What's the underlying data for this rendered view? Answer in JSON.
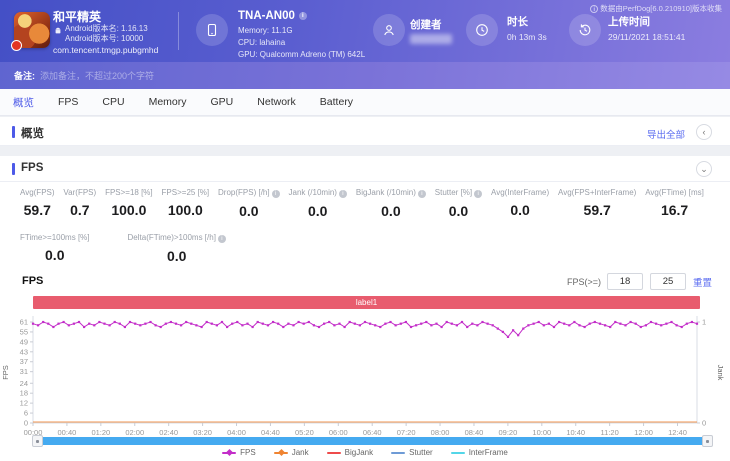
{
  "header": {
    "app": {
      "name": "和平精英",
      "android_version_name": "Android版本名: 1.16.13",
      "android_version_code": "Android版本号: 10000",
      "package": "com.tencent.tmgp.pubgmhd"
    },
    "device": {
      "model": "TNA-AN00",
      "memory": "Memory: 11.1G",
      "cpu": "CPU: lahaina",
      "gpu": "GPU: Qualcomm Adreno (TM) 642L"
    },
    "creator": {
      "label": "创建者",
      "value_hidden": true
    },
    "duration": {
      "label": "时长",
      "value": "0h 13m 3s"
    },
    "upload": {
      "label": "上传时间",
      "value": "29/11/2021 18:51:41"
    },
    "collect_note": "数据由PerfDog[6.0.210910]版本收集"
  },
  "note_bar": {
    "label": "备注:",
    "placeholder": "添加备注，不超过200个字符"
  },
  "tabs": [
    {
      "label": "概览",
      "name": "overview",
      "active": true
    },
    {
      "label": "FPS",
      "name": "fps",
      "active": false
    },
    {
      "label": "CPU",
      "name": "cpu",
      "active": false
    },
    {
      "label": "Memory",
      "name": "memory",
      "active": false
    },
    {
      "label": "GPU",
      "name": "gpu",
      "active": false
    },
    {
      "label": "Network",
      "name": "network",
      "active": false
    },
    {
      "label": "Battery",
      "name": "battery",
      "active": false
    }
  ],
  "overview": {
    "title": "概览",
    "export_all": "导出全部",
    "collapse_icon": "‹"
  },
  "fps_section": {
    "title": "FPS",
    "collapse_icon": "⌄",
    "stats_row1": [
      {
        "label": "Avg(FPS)",
        "value": "59.7",
        "info": false
      },
      {
        "label": "Var(FPS)",
        "value": "0.7",
        "info": false
      },
      {
        "label": "FPS>=18 [%]",
        "value": "100.0",
        "info": false
      },
      {
        "label": "FPS>=25 [%]",
        "value": "100.0",
        "info": false
      },
      {
        "label": "Drop(FPS) [/h]",
        "value": "0.0",
        "info": true
      },
      {
        "label": "Jank (/10min)",
        "value": "0.0",
        "info": true
      },
      {
        "label": "BigJank (/10min)",
        "value": "0.0",
        "info": true
      },
      {
        "label": "Stutter [%]",
        "value": "0.0",
        "info": true
      },
      {
        "label": "Avg(InterFrame)",
        "value": "0.0",
        "info": false
      },
      {
        "label": "Avg(FPS+InterFrame)",
        "value": "59.7",
        "info": false
      },
      {
        "label": "Avg(FTime) [ms]",
        "value": "16.7",
        "info": false
      }
    ],
    "stats_row2": [
      {
        "label": "FTime>=100ms [%]",
        "value": "0.0",
        "info": false
      },
      {
        "label": "Delta(FTime)>100ms [/h]",
        "value": "0.0",
        "info": true
      }
    ],
    "chart_label": "FPS",
    "threshold": {
      "label": "FPS(>=)",
      "low": "18",
      "high": "25",
      "reset": "重置"
    }
  },
  "chart_data": {
    "type": "line",
    "title": "",
    "ylabel_left": "FPS",
    "ylabel_right": "Jank",
    "y_ticks_left": [
      0,
      6,
      12,
      18,
      24,
      31,
      37,
      43,
      49,
      55,
      61
    ],
    "y_ticks_right": [
      0,
      1
    ],
    "ylim_left": [
      0,
      61
    ],
    "ylim_right": [
      0,
      1
    ],
    "duration_seconds": 783,
    "x_ticks": [
      "00:00",
      "00:40",
      "01:20",
      "02:00",
      "02:40",
      "03:20",
      "04:00",
      "04:40",
      "05:20",
      "06:00",
      "06:40",
      "07:20",
      "08:00",
      "08:40",
      "09:20",
      "10:00",
      "10:40",
      "11:20",
      "12:00",
      "12:40"
    ],
    "annotation_band": {
      "text": "label1",
      "color": "#e85c6e"
    },
    "grid": false,
    "legend_position": "bottom",
    "series": [
      {
        "name": "FPS",
        "color": "#c32ec9",
        "values": [
          60,
          59,
          61,
          60,
          58,
          60,
          61,
          59,
          60,
          61,
          58,
          60,
          59,
          61,
          60,
          59,
          61,
          60,
          58,
          61,
          60,
          59,
          60,
          61,
          59,
          58,
          60,
          61,
          60,
          59,
          61,
          60,
          59,
          58,
          61,
          60,
          59,
          61,
          58,
          60,
          61,
          59,
          60,
          58,
          61,
          60,
          59,
          61,
          60,
          58,
          60,
          59,
          61,
          60,
          61,
          59,
          58,
          60,
          61,
          59,
          60,
          58,
          61,
          60,
          59,
          61,
          60,
          59,
          58,
          60,
          61,
          59,
          60,
          61,
          58,
          59,
          60,
          61,
          59,
          60,
          58,
          61,
          60,
          59,
          61,
          58,
          60,
          59,
          61,
          60,
          59,
          57,
          55,
          52,
          56,
          53,
          57,
          59,
          60,
          61,
          59,
          60,
          58,
          61,
          60,
          59,
          61,
          59,
          58,
          60,
          61,
          60,
          59,
          58,
          61,
          60,
          59,
          61,
          60,
          58,
          59,
          61,
          60,
          59,
          60,
          61,
          59,
          58,
          60,
          61,
          60
        ]
      },
      {
        "name": "Jank",
        "color": "#ef8432",
        "constant": 0
      },
      {
        "name": "BigJank",
        "color": "#ee4b4b",
        "constant": null
      },
      {
        "name": "Stutter",
        "color": "#6e9bd6",
        "constant": null
      },
      {
        "name": "InterFrame",
        "color": "#53d6e8",
        "constant": null
      }
    ]
  },
  "colors": {
    "header_gradient_start": "#4450c6",
    "header_gradient_end": "#8b7de0",
    "accent_blue": "#4d5ae8",
    "link_blue": "#5b6cf0",
    "band_red": "#e85c6e",
    "scrollbar_blue": "#45aaf0"
  },
  "icons": {
    "overview_collapse": "chevron-left",
    "fps_collapse": "chevron-down",
    "info": "i"
  }
}
